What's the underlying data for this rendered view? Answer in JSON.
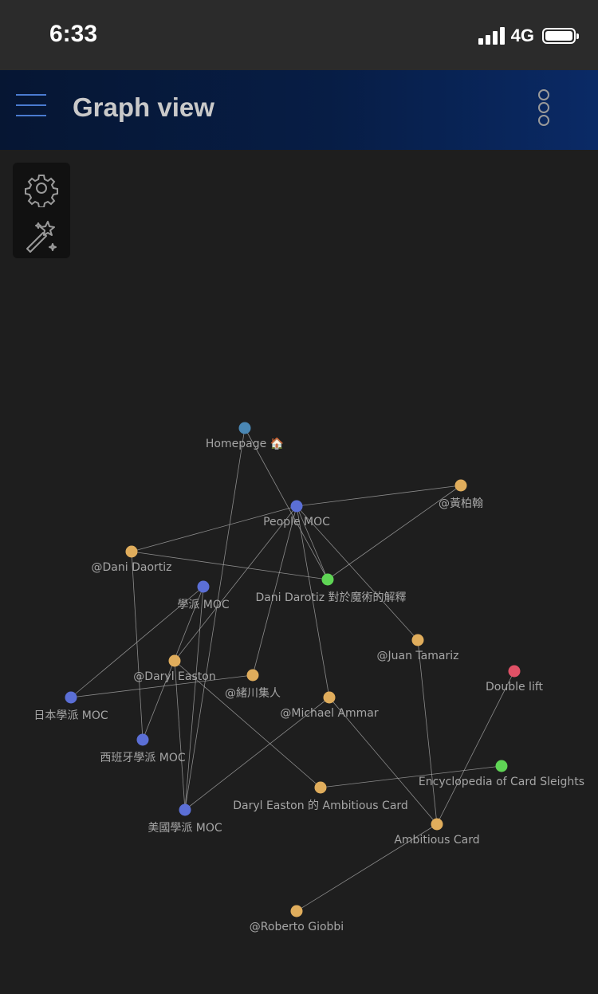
{
  "status_bar": {
    "time": "6:33",
    "network": "4G",
    "icons": [
      "signal-icon",
      "battery-icon"
    ]
  },
  "header": {
    "title": "Graph view",
    "menu_icon": "hamburger-menu-icon",
    "more_icon": "vertical-dots-icon",
    "accent_color": "#4a7bd0"
  },
  "toolbox": {
    "icons": [
      "gear-icon",
      "magic-wand-icon"
    ]
  },
  "graph": {
    "node_colors": {
      "teal": "#4a87b4",
      "blue": "#5b6fd6",
      "yellow": "#e0ad5c",
      "green": "#5fd555",
      "red": "#e05166"
    },
    "nodes": [
      {
        "id": "homepage",
        "label": "Homepage 🏠",
        "color": "teal"
      },
      {
        "id": "people",
        "label": "People MOC",
        "color": "blue"
      },
      {
        "id": "huang",
        "label": "@黃柏翰",
        "color": "yellow"
      },
      {
        "id": "daortiz",
        "label": "@Dani Daortiz",
        "color": "yellow"
      },
      {
        "id": "darotiz",
        "label": "Dani Darotiz 對於魔術的解釋",
        "color": "green"
      },
      {
        "id": "xuepai",
        "label": "學派 MOC",
        "color": "blue"
      },
      {
        "id": "tamariz",
        "label": "@Juan Tamariz",
        "color": "yellow"
      },
      {
        "id": "doublelift",
        "label": "Double lift",
        "color": "red"
      },
      {
        "id": "easton",
        "label": "@Daryl Easton",
        "color": "yellow"
      },
      {
        "id": "ogawa",
        "label": "@緒川集人",
        "color": "yellow"
      },
      {
        "id": "japan",
        "label": "日本學派 MOC",
        "color": "blue"
      },
      {
        "id": "ammar",
        "label": "@Michael Ammar",
        "color": "yellow"
      },
      {
        "id": "spain",
        "label": "西班牙學派 MOC",
        "color": "blue"
      },
      {
        "id": "encyclopedia",
        "label": "Encyclopedia of Card Sleights",
        "color": "green"
      },
      {
        "id": "easton_ac",
        "label": "Daryl Easton 的 Ambitious Card",
        "color": "yellow"
      },
      {
        "id": "usa",
        "label": "美國學派 MOC",
        "color": "blue"
      },
      {
        "id": "ambitious",
        "label": "Ambitious Card",
        "color": "yellow"
      },
      {
        "id": "giobbi",
        "label": "@Roberto Giobbi",
        "color": "yellow"
      }
    ],
    "edges": [
      [
        "homepage",
        "usa"
      ],
      [
        "homepage",
        "darotiz"
      ],
      [
        "people",
        "huang"
      ],
      [
        "people",
        "daortiz"
      ],
      [
        "people",
        "easton"
      ],
      [
        "people",
        "ogawa"
      ],
      [
        "people",
        "ammar"
      ],
      [
        "people",
        "tamariz"
      ],
      [
        "people",
        "darotiz"
      ],
      [
        "daortiz",
        "darotiz"
      ],
      [
        "daortiz",
        "spain"
      ],
      [
        "huang",
        "darotiz"
      ],
      [
        "xuepai",
        "japan"
      ],
      [
        "xuepai",
        "spain"
      ],
      [
        "xuepai",
        "usa"
      ],
      [
        "easton",
        "usa"
      ],
      [
        "easton",
        "easton_ac"
      ],
      [
        "japan",
        "ogawa"
      ],
      [
        "ammar",
        "usa"
      ],
      [
        "ammar",
        "ambitious"
      ],
      [
        "tamariz",
        "ambitious"
      ],
      [
        "doublelift",
        "ambitious"
      ],
      [
        "encyclopedia",
        "easton_ac"
      ],
      [
        "ambitious",
        "giobbi"
      ]
    ]
  }
}
